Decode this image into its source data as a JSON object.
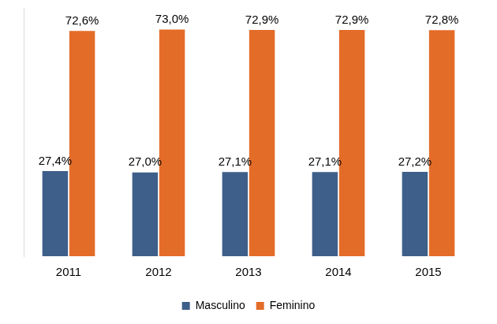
{
  "chart_data": {
    "type": "bar",
    "categories": [
      "2011",
      "2012",
      "2013",
      "2014",
      "2015"
    ],
    "series": [
      {
        "name": "Masculino",
        "color": "#3e5f8a",
        "values": [
          27.4,
          27.0,
          27.1,
          27.1,
          27.2
        ],
        "value_labels": [
          "27,4%",
          "27,0%",
          "27,1%",
          "27,1%",
          "27,2%"
        ]
      },
      {
        "name": "Feminino",
        "color": "#e46c29",
        "values": [
          72.6,
          73.0,
          72.9,
          72.9,
          72.8
        ],
        "value_labels": [
          "72,6%",
          "73,0%",
          "72,9%",
          "72,9%",
          "72,8%"
        ]
      }
    ],
    "ylim": [
      0,
      80
    ],
    "grid": false,
    "legend": "bottom",
    "data_labels": true,
    "tick_labels": "x"
  }
}
